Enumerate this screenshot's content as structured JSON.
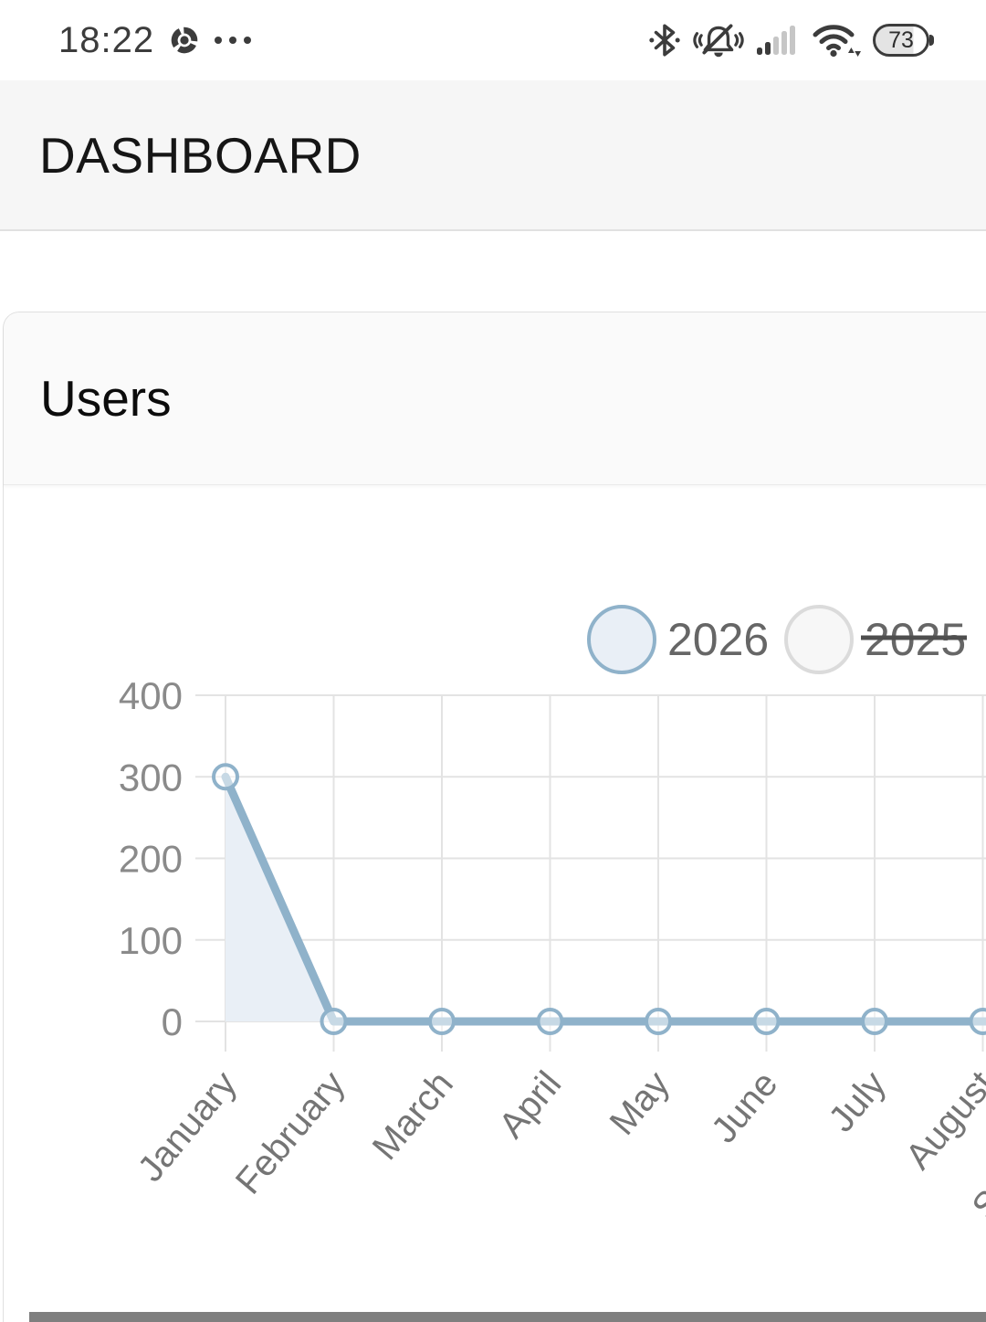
{
  "status_bar": {
    "time": "18:22",
    "battery_percent": "73",
    "icons": [
      "chrome-icon",
      "more-notifications-icon",
      "bluetooth-icon",
      "notifications-off-icon",
      "cellular-signal-icon",
      "wifi-icon",
      "battery-icon"
    ]
  },
  "header": {
    "title": "DASHBOARD"
  },
  "card": {
    "title": "Users"
  },
  "chart_data": {
    "type": "line",
    "title": "Users",
    "categories": [
      "January",
      "February",
      "March",
      "April",
      "May",
      "June",
      "July",
      "August",
      "September"
    ],
    "series": [
      {
        "name": "2026",
        "values": [
          300,
          0,
          0,
          0,
          0,
          0,
          0,
          0,
          0
        ],
        "visible": true
      },
      {
        "name": "2025",
        "values": [],
        "visible": false
      }
    ],
    "y_ticks": [
      0,
      100,
      200,
      300,
      400
    ],
    "ylim": [
      0,
      400
    ],
    "grid": true,
    "legend_position": "top",
    "legend_note": "2025 entry shown struck-through (series hidden)",
    "colors": {
      "line": "#8FB2CA",
      "area": "#E9EFF6",
      "marker_fill": "#FFFFFF",
      "grid": "#E3E3E3",
      "y_tick_text": "#8A8A8A",
      "x_tick_text": "#757575",
      "legend_text": "#666666",
      "legend_hidden_stroke": "#DBDBDB",
      "legend_hidden_fill": "#F7F7F7",
      "strike": "#4E4E4E"
    }
  }
}
